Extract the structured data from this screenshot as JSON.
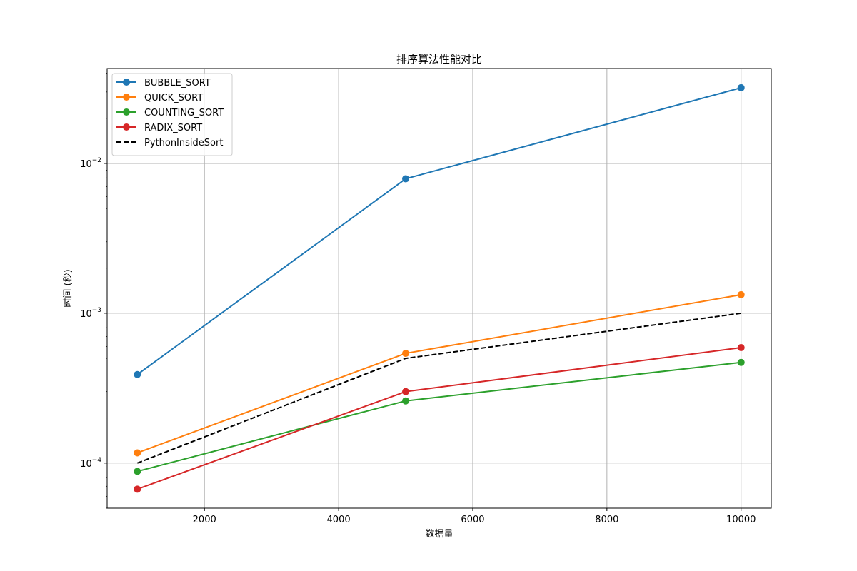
{
  "chart_data": {
    "type": "line",
    "title": "排序算法性能对比",
    "xlabel": "数据量",
    "ylabel": "时间 (秒)",
    "x": [
      1000,
      5000,
      10000
    ],
    "xlim": [
      550,
      10450
    ],
    "ylim": [
      5e-05,
      0.043
    ],
    "y_scale": "log",
    "grid": true,
    "legend_position": "top-left",
    "x_ticks": [
      {
        "value": 2000,
        "label": "2000"
      },
      {
        "value": 4000,
        "label": "4000"
      },
      {
        "value": 6000,
        "label": "6000"
      },
      {
        "value": 8000,
        "label": "8000"
      },
      {
        "value": 10000,
        "label": "10000"
      }
    ],
    "y_ticks": [
      {
        "value": 0.0001,
        "base": "10",
        "exp": "−4"
      },
      {
        "value": 0.001,
        "base": "10",
        "exp": "−3"
      },
      {
        "value": 0.01,
        "base": "10",
        "exp": "−2"
      }
    ],
    "series": [
      {
        "name": "BUBBLE_SORT",
        "values": [
          0.00039,
          0.0079,
          0.032
        ],
        "color": "#1f77b4",
        "style": "solid",
        "marker": true
      },
      {
        "name": "QUICK_SORT",
        "values": [
          0.000117,
          0.00054,
          0.00133
        ],
        "color": "#ff7f0e",
        "style": "solid",
        "marker": true
      },
      {
        "name": "COUNTING_SORT",
        "values": [
          8.8e-05,
          0.00026,
          0.00047
        ],
        "color": "#2ca02c",
        "style": "solid",
        "marker": true
      },
      {
        "name": "RADIX_SORT",
        "values": [
          6.7e-05,
          0.0003,
          0.00059
        ],
        "color": "#d62728",
        "style": "solid",
        "marker": true
      },
      {
        "name": "PythonInsideSort",
        "values": [
          0.0001,
          0.0005,
          0.001
        ],
        "color": "#000000",
        "style": "dashed",
        "marker": false
      }
    ]
  }
}
